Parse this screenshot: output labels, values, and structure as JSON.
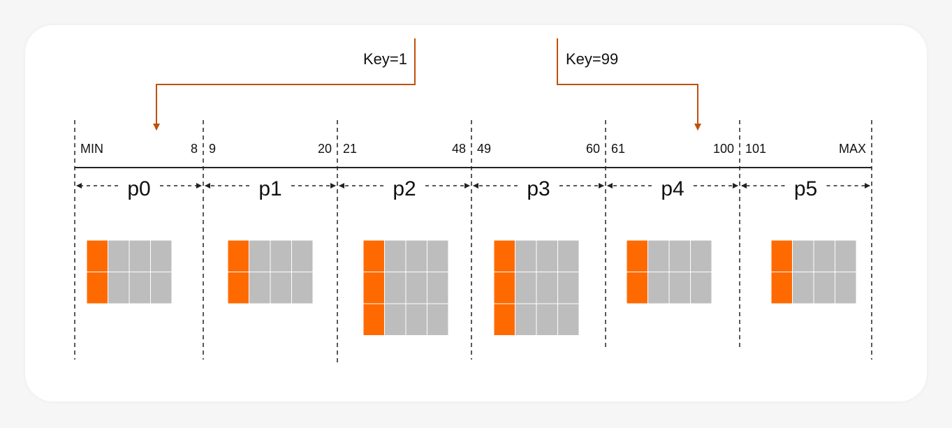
{
  "colors": {
    "key_column": "#ff6a00",
    "value_cell": "#bdbdbd",
    "key_arrow": "#c0500a",
    "line": "#222222"
  },
  "partitions": [
    {
      "name": "p0",
      "start": "MIN",
      "end": "8",
      "rows": 2
    },
    {
      "name": "p1",
      "start": "9",
      "end": "20",
      "rows": 2
    },
    {
      "name": "p2",
      "start": "21",
      "end": "48",
      "rows": 3
    },
    {
      "name": "p3",
      "start": "49",
      "end": "60",
      "rows": 3
    },
    {
      "name": "p4",
      "start": "61",
      "end": "100",
      "rows": 2
    },
    {
      "name": "p5",
      "start": "101",
      "end": "MAX",
      "rows": 2
    }
  ],
  "columns_per_row": 4,
  "keys": [
    {
      "label": "Key=1",
      "partition": "p0"
    },
    {
      "label": "Key=99",
      "partition": "p4"
    }
  ]
}
